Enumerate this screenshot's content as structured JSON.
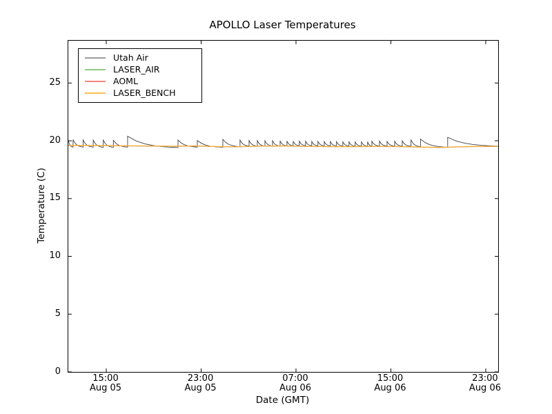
{
  "colors": {
    "background": "#ffffff",
    "axes": "#000000",
    "text": "#000000"
  },
  "chart_data": {
    "type": "line",
    "title": "APOLLO Laser Temperatures",
    "xlabel": "Date (GMT)",
    "ylabel": "Temperature (C)",
    "grid": false,
    "legend_position": "upper left",
    "x_unit": "hours since Aug 05 00:00 GMT",
    "xlim": [
      11.8,
      48.05
    ],
    "ylim": [
      0,
      28.66
    ],
    "y_ticks": [
      0,
      5,
      10,
      15,
      20,
      25
    ],
    "x_ticks": [
      {
        "t": 15,
        "time": "15:00",
        "date": "Aug 05"
      },
      {
        "t": 23,
        "time": "23:00",
        "date": "Aug 05"
      },
      {
        "t": 31,
        "time": "07:00",
        "date": "Aug 06"
      },
      {
        "t": 39,
        "time": "15:00",
        "date": "Aug 06"
      },
      {
        "t": 47,
        "time": "23:00",
        "date": "Aug 06"
      }
    ],
    "series": [
      {
        "name": "Utah Air",
        "color": "#3f3f3f",
        "legend_color": "#9c9c9c",
        "line_width": 0.9,
        "sawtooth": {
          "start": [
            11.8,
            20.02
          ],
          "decay_rate": 3.0,
          "spikes": [
            [
              12.2,
              20.1,
              19.42
            ],
            [
              13.05,
              20.08,
              19.42
            ],
            [
              13.9,
              20.06,
              19.4
            ],
            [
              14.75,
              20.06,
              19.4
            ],
            [
              15.6,
              20.04,
              19.42
            ],
            [
              16.8,
              20.4,
              19.36
            ],
            [
              21.05,
              20.06,
              19.42
            ],
            [
              22.68,
              20.02,
              19.4
            ],
            [
              24.83,
              20.12,
              19.46
            ],
            [
              26.28,
              20.06,
              19.52
            ],
            [
              27.04,
              20.02,
              19.52
            ],
            [
              27.74,
              20.02,
              19.52
            ],
            [
              28.38,
              20.0,
              19.53
            ],
            [
              29.02,
              20.0,
              19.53
            ],
            [
              29.66,
              20.0,
              19.54
            ],
            [
              30.24,
              19.98,
              19.55
            ],
            [
              30.76,
              19.97,
              19.56
            ],
            [
              31.28,
              19.97,
              19.56
            ],
            [
              31.81,
              19.96,
              19.56
            ],
            [
              32.33,
              19.95,
              19.55
            ],
            [
              32.85,
              19.95,
              19.55
            ],
            [
              33.38,
              19.94,
              19.54
            ],
            [
              33.9,
              19.93,
              19.54
            ],
            [
              34.42,
              19.93,
              19.53
            ],
            [
              34.95,
              19.92,
              19.53
            ],
            [
              35.47,
              19.91,
              19.52
            ],
            [
              35.99,
              19.9,
              19.52
            ],
            [
              36.52,
              19.9,
              19.51
            ],
            [
              37.04,
              19.92,
              19.52
            ],
            [
              37.4,
              19.96,
              19.53
            ],
            [
              38.04,
              19.96,
              19.53
            ],
            [
              38.68,
              19.95,
              19.52
            ],
            [
              39.32,
              19.96,
              19.52
            ],
            [
              39.96,
              20.0,
              19.5
            ],
            [
              40.7,
              20.08,
              19.46
            ],
            [
              41.5,
              20.14,
              19.4
            ],
            [
              43.79,
              20.3,
              19.5
            ]
          ],
          "end": [
            48.05,
            19.55
          ]
        }
      },
      {
        "name": "LASER_AIR",
        "color": "#92c882",
        "legend_color": "#92c882",
        "line_width": 1.1,
        "points": [
          [
            11.8,
            19.58
          ],
          [
            14.0,
            19.58
          ],
          [
            16.5,
            19.55
          ],
          [
            19.0,
            19.53
          ],
          [
            21.0,
            19.51
          ],
          [
            22.5,
            19.54
          ],
          [
            24.5,
            19.48
          ],
          [
            26.0,
            19.47
          ],
          [
            28.0,
            19.53
          ],
          [
            30.0,
            19.54
          ],
          [
            32.0,
            19.5
          ],
          [
            34.0,
            19.48
          ],
          [
            36.0,
            19.48
          ],
          [
            38.0,
            19.5
          ],
          [
            40.0,
            19.48
          ],
          [
            42.0,
            19.43
          ],
          [
            43.3,
            19.41
          ],
          [
            44.5,
            19.46
          ],
          [
            46.0,
            19.49
          ],
          [
            48.05,
            19.51
          ]
        ]
      },
      {
        "name": "AOML",
        "color": "#f3837b",
        "legend_color": "#f3837b",
        "line_width": 1.1,
        "points": [
          [
            11.8,
            19.59
          ],
          [
            14.0,
            19.59
          ],
          [
            16.5,
            19.56
          ],
          [
            19.0,
            19.54
          ],
          [
            21.0,
            19.52
          ],
          [
            22.5,
            19.55
          ],
          [
            24.5,
            19.49
          ],
          [
            26.0,
            19.48
          ],
          [
            28.0,
            19.54
          ],
          [
            30.0,
            19.55
          ],
          [
            32.0,
            19.51
          ],
          [
            34.0,
            19.49
          ],
          [
            36.0,
            19.49
          ],
          [
            38.0,
            19.51
          ],
          [
            40.0,
            19.49
          ],
          [
            42.0,
            19.44
          ],
          [
            43.3,
            19.42
          ],
          [
            44.5,
            19.47
          ],
          [
            46.0,
            19.5
          ],
          [
            48.05,
            19.52
          ]
        ]
      },
      {
        "name": "LASER_BENCH",
        "color": "#fdae38",
        "legend_color": "#fdbd4f",
        "line_width": 1.2,
        "points": [
          [
            11.8,
            19.6
          ],
          [
            14.0,
            19.6
          ],
          [
            16.5,
            19.57
          ],
          [
            19.0,
            19.55
          ],
          [
            21.0,
            19.53
          ],
          [
            22.5,
            19.56
          ],
          [
            24.5,
            19.5
          ],
          [
            26.0,
            19.49
          ],
          [
            28.0,
            19.55
          ],
          [
            30.0,
            19.56
          ],
          [
            32.0,
            19.52
          ],
          [
            34.0,
            19.5
          ],
          [
            36.0,
            19.5
          ],
          [
            38.0,
            19.52
          ],
          [
            40.0,
            19.5
          ],
          [
            42.0,
            19.45
          ],
          [
            43.3,
            19.43
          ],
          [
            44.5,
            19.48
          ],
          [
            46.0,
            19.51
          ],
          [
            48.05,
            19.53
          ]
        ]
      }
    ]
  }
}
